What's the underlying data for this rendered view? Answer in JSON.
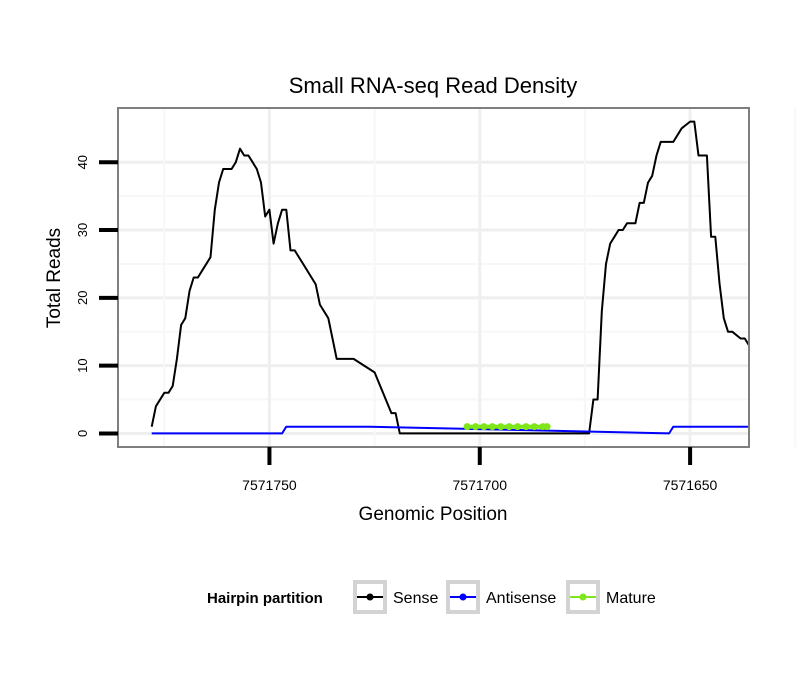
{
  "chart_data": {
    "type": "line",
    "title": "Small RNA-seq Read Density",
    "xlabel": "Genomic Position",
    "ylabel": "Total Reads",
    "xlim": [
      7571786,
      7571636
    ],
    "ylim": [
      -2,
      48
    ],
    "x_reversed": true,
    "grid": true,
    "y_ticks": [
      0,
      10,
      20,
      30,
      40
    ],
    "x_ticks": [
      7571750,
      7571700,
      7571650
    ],
    "legend": {
      "title": "Hairpin partition",
      "position": "bottom",
      "entries": [
        "Sense",
        "Antisense",
        "Mature"
      ]
    },
    "series": [
      {
        "name": "Sense",
        "color": "#000000",
        "x": [
          7571778,
          7571777,
          7571775,
          7571774,
          7571773,
          7571772,
          7571771,
          7571770,
          7571769,
          7571768,
          7571767,
          7571766,
          7571764,
          7571763,
          7571762,
          7571761,
          7571760,
          7571759,
          7571758,
          7571757,
          7571756,
          7571755,
          7571754,
          7571753,
          7571752,
          7571751,
          7571750,
          7571749,
          7571748,
          7571747,
          7571746,
          7571745,
          7571744,
          7571742,
          7571740,
          7571739,
          7571738,
          7571736,
          7571735,
          7571734,
          7571733,
          7571732,
          7571730,
          7571725,
          7571721,
          7571720,
          7571719,
          7571718,
          7571700,
          7571680,
          7571674,
          7571673,
          7571672,
          7571671,
          7571670,
          7571669,
          7571668,
          7571667,
          7571666,
          7571665,
          7571663,
          7571662,
          7571661,
          7571660,
          7571659,
          7571658,
          7571657,
          7571655,
          7571654,
          7571652,
          7571650,
          7571649,
          7571648,
          7571646,
          7571645,
          7571644,
          7571643,
          7571642,
          7571641,
          7571640,
          7571638,
          7571637,
          7571636
        ],
        "y": [
          1,
          4,
          6,
          6,
          7,
          11,
          16,
          17,
          21,
          23,
          23,
          24,
          26,
          33,
          37,
          39,
          39,
          39,
          40,
          42,
          41,
          41,
          40,
          39,
          37,
          32,
          33,
          28,
          31,
          33,
          33,
          27,
          27,
          25,
          23,
          22,
          19,
          17,
          14,
          11,
          11,
          11,
          11,
          9,
          3,
          3,
          0,
          0,
          0,
          0,
          0,
          5,
          5,
          18,
          25,
          28,
          29,
          30,
          30,
          31,
          31,
          34,
          34,
          37,
          38,
          41,
          43,
          43,
          43,
          45,
          46,
          46,
          41,
          41,
          29,
          29,
          22,
          17,
          15,
          15,
          14,
          14,
          13
        ]
      },
      {
        "name": "Antisense",
        "color": "#0000ff",
        "x": [
          7571778,
          7571747,
          7571746,
          7571726,
          7571655,
          7571654,
          7571636
        ],
        "y": [
          0,
          0,
          1,
          1,
          0,
          1,
          1
        ]
      },
      {
        "name": "Mature",
        "color": "#7fe61a",
        "x": [
          7571703,
          7571701,
          7571699,
          7571697,
          7571695,
          7571693,
          7571691,
          7571689,
          7571687,
          7571685,
          7571684
        ],
        "y": [
          1,
          1,
          1,
          1,
          1,
          1,
          1,
          1,
          1,
          1,
          1
        ]
      }
    ]
  }
}
